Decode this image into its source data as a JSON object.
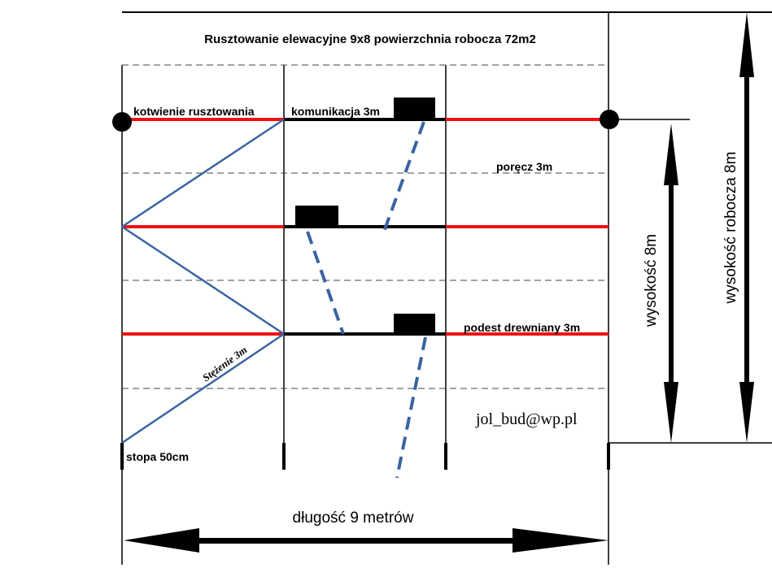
{
  "title": "Rusztowanie elewacyjne 9x8 powierzchnia robocza 72m2",
  "labels": {
    "anchoring": "kotwienie rusztowania",
    "communication": "komunikacja 3m",
    "railing": "poręcz 3m",
    "platform": "podest drewniany 3m",
    "bracing": "Stężenie 3m",
    "foot": "stopa 50cm",
    "email": "jol_bud@wp.pl",
    "length": "długość 9 metrów",
    "height": "wysokość 8m",
    "working_height": "wysokość robocza 8m"
  },
  "colors": {
    "railing": "#ee1111",
    "bracing": "#3a64a0",
    "frame": "#000000"
  }
}
